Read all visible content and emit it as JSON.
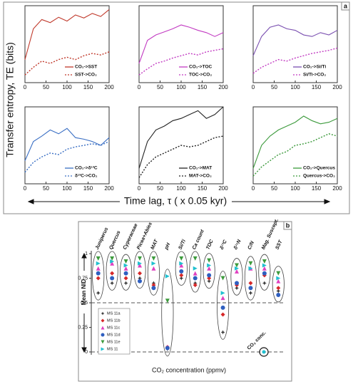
{
  "panel_labels": [
    "a",
    "b"
  ],
  "shared_ylabel": "Transfer entropy, TE (bits)",
  "shared_xlabel": "Time lag, τ ( x 0.05 kyr)",
  "chart_data": [
    {
      "type": "line",
      "x": [
        0,
        20,
        40,
        60,
        80,
        100,
        120,
        140,
        160,
        180,
        200
      ],
      "xlim": [
        0,
        200
      ],
      "xticks": [
        0,
        50,
        100,
        150,
        200
      ],
      "ylim": [
        0,
        1
      ],
      "series": [
        {
          "name": "CO₂->SST",
          "color": "#c0392b",
          "dash": false,
          "values": [
            0.3,
            0.7,
            0.82,
            0.78,
            0.85,
            0.8,
            0.88,
            0.84,
            0.9,
            0.86,
            0.95
          ]
        },
        {
          "name": "SST->CO₂",
          "color": "#c0392b",
          "dash": true,
          "values": [
            0.1,
            0.2,
            0.28,
            0.25,
            0.3,
            0.33,
            0.3,
            0.35,
            0.38,
            0.36,
            0.4
          ]
        }
      ]
    },
    {
      "type": "line",
      "x": [
        0,
        20,
        40,
        60,
        80,
        100,
        120,
        140,
        160,
        180,
        200
      ],
      "xlim": [
        0,
        200
      ],
      "xticks": [
        0,
        50,
        100,
        150,
        200
      ],
      "ylim": [
        0,
        1
      ],
      "series": [
        {
          "name": "CO₂->TOC",
          "color": "#c23bc2",
          "dash": false,
          "values": [
            0.25,
            0.55,
            0.62,
            0.66,
            0.7,
            0.75,
            0.72,
            0.68,
            0.65,
            0.6,
            0.65
          ]
        },
        {
          "name": "TOC->CO₂",
          "color": "#c23bc2",
          "dash": true,
          "values": [
            0.1,
            0.18,
            0.25,
            0.28,
            0.32,
            0.35,
            0.38,
            0.36,
            0.4,
            0.42,
            0.44
          ]
        }
      ]
    },
    {
      "type": "line",
      "x": [
        0,
        20,
        40,
        60,
        80,
        100,
        120,
        140,
        160,
        180,
        200
      ],
      "xlim": [
        0,
        200
      ],
      "xticks": [
        0,
        50,
        100,
        150,
        200
      ],
      "ylim": [
        0,
        1
      ],
      "series": [
        {
          "name": "CO₂->Si/Ti",
          "color": "#7a4fb0",
          "dash": false,
          "values": [
            0.35,
            0.6,
            0.72,
            0.75,
            0.7,
            0.68,
            0.62,
            0.6,
            0.65,
            0.62,
            0.68
          ]
        },
        {
          "name": "Si/Ti->CO₂",
          "color": "#c23bc2",
          "dash": true,
          "values": [
            0.12,
            0.2,
            0.25,
            0.3,
            0.28,
            0.32,
            0.35,
            0.38,
            0.4,
            0.42,
            0.45
          ]
        }
      ]
    },
    {
      "type": "line",
      "x": [
        0,
        20,
        40,
        60,
        80,
        100,
        120,
        140,
        160,
        180,
        200
      ],
      "xlim": [
        0,
        200
      ],
      "xticks": [
        0,
        50,
        100,
        150,
        200
      ],
      "ylim": [
        0,
        1
      ],
      "series": [
        {
          "name": "CO₂->δ¹³C",
          "color": "#3a6fc4",
          "dash": false,
          "values": [
            0.3,
            0.55,
            0.62,
            0.7,
            0.65,
            0.72,
            0.6,
            0.58,
            0.55,
            0.5,
            0.6
          ]
        },
        {
          "name": "δ¹³C->CO₂",
          "color": "#3a6fc4",
          "dash": true,
          "values": [
            0.15,
            0.28,
            0.35,
            0.4,
            0.38,
            0.45,
            0.48,
            0.5,
            0.52,
            0.5,
            0.55
          ]
        }
      ]
    },
    {
      "type": "line",
      "x": [
        0,
        20,
        40,
        60,
        80,
        100,
        120,
        140,
        160,
        180,
        200
      ],
      "xlim": [
        0,
        200
      ],
      "xticks": [
        0,
        50,
        100,
        150,
        200
      ],
      "ylim": [
        0,
        1
      ],
      "series": [
        {
          "name": "CO₂->MAT",
          "color": "#222222",
          "dash": false,
          "values": [
            0.2,
            0.55,
            0.7,
            0.75,
            0.82,
            0.85,
            0.9,
            0.95,
            0.85,
            0.9,
            1.0
          ]
        },
        {
          "name": "MAT->CO₂",
          "color": "#222222",
          "dash": true,
          "values": [
            0.08,
            0.25,
            0.35,
            0.4,
            0.45,
            0.5,
            0.48,
            0.5,
            0.55,
            0.6,
            0.62
          ]
        }
      ]
    },
    {
      "type": "line",
      "x": [
        0,
        20,
        40,
        60,
        80,
        100,
        120,
        140,
        160,
        180,
        200
      ],
      "xlim": [
        0,
        200
      ],
      "xticks": [
        0,
        50,
        100,
        150,
        200
      ],
      "ylim": [
        0,
        1
      ],
      "series": [
        {
          "name": "CO₂->Quercus",
          "color": "#3c9a3c",
          "dash": false,
          "values": [
            0.2,
            0.5,
            0.62,
            0.7,
            0.75,
            0.8,
            0.88,
            0.82,
            0.78,
            0.8,
            0.85
          ]
        },
        {
          "name": "Quercus->CO₂",
          "color": "#3c9a3c",
          "dash": true,
          "values": [
            0.1,
            0.22,
            0.3,
            0.38,
            0.42,
            0.5,
            0.52,
            0.55,
            0.6,
            0.65,
            0.62
          ]
        }
      ]
    },
    {
      "type": "dot",
      "ylabel": "Mean NID",
      "xlabel": "CO₂ concentration (ppmv)",
      "annotation": "CO₂ conc.",
      "ylim": [
        0,
        1
      ],
      "yticks": [
        0,
        0.25,
        0.5,
        0.75,
        1
      ],
      "hlines": [
        0,
        0.5
      ],
      "categories": [
        "Juniperus",
        "Quercus",
        "Cyperaceae",
        "Picea+Abies",
        "MAT",
        "pH",
        "Si/Ti",
        "Ca count",
        "TOC",
        "δ¹³C",
        "δ¹⁵N",
        "C/N",
        "Mag. Suscept.",
        "SST"
      ],
      "series": [
        {
          "name": "MS 11a",
          "color": "#333333",
          "marker": "star",
          "values": [
            0.6,
            0.7,
            0.7,
            0.75,
            0.7,
            0.03,
            0.75,
            0.7,
            0.72,
            0.2,
            0.65,
            0.6,
            0.7,
            0.62
          ]
        },
        {
          "name": "MS 11b",
          "color": "#d62728",
          "marker": "diamond",
          "values": [
            0.75,
            0.8,
            0.75,
            0.8,
            0.68,
            0.05,
            0.78,
            0.68,
            0.75,
            0.38,
            0.68,
            0.7,
            0.78,
            0.65
          ]
        },
        {
          "name": "MS 11c",
          "color": "#e040c0",
          "marker": "triangle-up",
          "values": [
            0.85,
            0.9,
            0.85,
            0.88,
            0.85,
            0.05,
            0.88,
            0.8,
            0.85,
            0.55,
            0.82,
            0.85,
            0.85,
            0.72
          ]
        },
        {
          "name": "MS 11d",
          "color": "#2f5fc0",
          "marker": "circle",
          "values": [
            0.8,
            0.75,
            0.8,
            0.72,
            0.65,
            0.04,
            0.82,
            0.75,
            0.78,
            0.45,
            0.7,
            0.65,
            0.8,
            0.58
          ]
        },
        {
          "name": "MS 11e",
          "color": "#3c9a3c",
          "marker": "triangle-down",
          "values": [
            0.95,
            0.95,
            0.92,
            0.95,
            0.95,
            0.52,
            0.95,
            0.95,
            0.93,
            0.75,
            0.88,
            0.9,
            0.92,
            0.8
          ]
        },
        {
          "name": "MS 11",
          "color": "#20c0d0",
          "marker": "triangle-right",
          "values": [
            0.9,
            0.92,
            0.88,
            0.9,
            0.9,
            0.77,
            0.9,
            0.85,
            0.88,
            0.6,
            0.85,
            0.85,
            0.88,
            0.75
          ]
        }
      ]
    }
  ]
}
